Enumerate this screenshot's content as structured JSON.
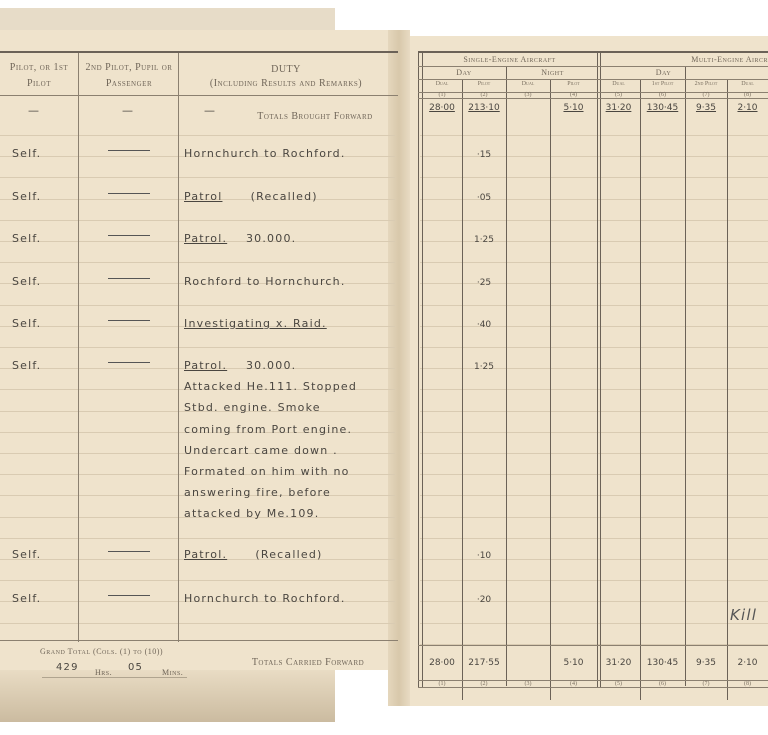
{
  "left_header": {
    "pilot": "Pilot, or 1st Pilot",
    "second_pilot": "2nd Pilot, Pupil or Passenger",
    "duty_title": "DUTY",
    "duty_sub": "(Including Results and Remarks)"
  },
  "brought_forward": {
    "dash": "—",
    "label": "Totals Brought Forward"
  },
  "rows": [
    {
      "pilot": "Self.",
      "duty": [
        {
          "t": "Hornchurch   to   Rochford."
        }
      ],
      "time": "·15"
    },
    {
      "pilot": "Self.",
      "duty": [
        {
          "t": "Patrol",
          "u": true,
          "rest": "      (Recalled)"
        }
      ],
      "time": "·05"
    },
    {
      "pilot": "Self.",
      "duty": [
        {
          "t": "Patrol.",
          "u": true,
          "rest": "    30.000."
        }
      ],
      "time": "1·25"
    },
    {
      "pilot": "Self.",
      "duty": [
        {
          "t": "Rochford   to   Hornchurch."
        }
      ],
      "time": "·25"
    },
    {
      "pilot": "Self.",
      "duty": [
        {
          "t": "Investigating   x.  Raid.",
          "u": true
        }
      ],
      "time": "·40"
    },
    {
      "pilot": "Self.",
      "duty": [
        {
          "t": "Patrol.",
          "u": true,
          "rest": "    30.000."
        },
        {
          "t": "Attacked  He.111.  Stopped"
        },
        {
          "t": "Stbd.  engine.   Smoke"
        },
        {
          "t": "coming  from  Port  engine."
        },
        {
          "t": "Undercart  came  down ."
        },
        {
          "t": "Formated  on  him  with  no"
        },
        {
          "t": "answering  fire,  before"
        },
        {
          "t": "attacked  by  Me.109."
        }
      ],
      "time": "1·25"
    },
    {
      "pilot": "Self.",
      "duty": [
        {
          "t": "Patrol.",
          "u": true,
          "rest": "      (Recalled)"
        }
      ],
      "time": "·10"
    },
    {
      "pilot": "Self.",
      "duty": [
        {
          "t": "Hornchurch   to   Rochford."
        }
      ],
      "time": "·20"
    }
  ],
  "grand_total": {
    "label": "Grand Total (Cols. (1) to (10))",
    "hrs": "429",
    "hrs_label": "Hrs.",
    "mins": "05",
    "mins_label": "Mins."
  },
  "carried_forward_label": "Totals Carried Forward",
  "right_header": {
    "single_engine": "Single-Engine Aircraft",
    "multi_engine": "Multi-Engine Aircr",
    "day": "Day",
    "night": "Night",
    "cols": [
      "Dual",
      "Pilot",
      "Dual",
      "Pilot",
      "Dual",
      "1st Pilot",
      "2nd Pilot",
      "Dual"
    ],
    "col_nums": [
      "(1)",
      "(2)",
      "(3)",
      "(4)",
      "(5)",
      "(6)",
      "(7)",
      "(8)"
    ]
  },
  "brought_forward_values": [
    "28·00",
    "213·10",
    "",
    "5·10",
    "31·20",
    "130·45",
    "9·35",
    "2·10"
  ],
  "carried_forward_values": [
    "28·00",
    "217·55",
    "",
    "5·10",
    "31·20",
    "130·45",
    "9·35",
    "2·10"
  ],
  "margin_note": "Kill"
}
